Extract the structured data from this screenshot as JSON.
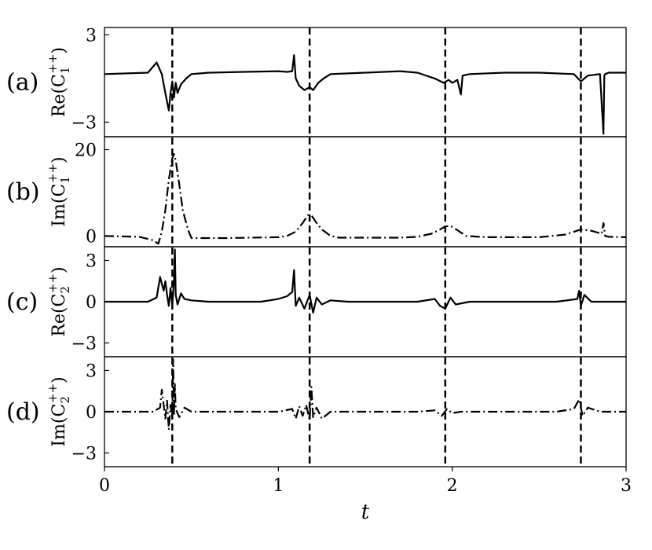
{
  "chart_data": {
    "type": "line",
    "xlabel": "t",
    "xlim": [
      0,
      3
    ],
    "xticks": [
      "0",
      "1",
      "2",
      "3"
    ],
    "vlines": [
      0.39,
      1.18,
      1.96,
      2.74
    ],
    "panels": [
      {
        "letter": "(a)",
        "ylabel_main": "Re(C",
        "ylabel_sub": "1",
        "ylabel_sup": "++",
        "ylabel_close": ")",
        "ylim": [
          -4,
          3.5
        ],
        "yticks": [
          {
            "value": 3,
            "label": "3"
          },
          {
            "value": -3,
            "label": "−3"
          }
        ],
        "linestyle": "solid",
        "x": [
          0,
          0.25,
          0.3,
          0.33,
          0.35,
          0.37,
          0.38,
          0.39,
          0.4,
          0.41,
          0.42,
          0.44,
          0.47,
          0.5,
          0.6,
          0.8,
          1.0,
          1.05,
          1.08,
          1.09,
          1.1,
          1.12,
          1.15,
          1.18,
          1.2,
          1.23,
          1.26,
          1.3,
          1.5,
          1.7,
          1.8,
          1.9,
          1.95,
          1.98,
          2.0,
          2.03,
          2.05,
          2.06,
          2.1,
          2.3,
          2.5,
          2.7,
          2.74,
          2.78,
          2.85,
          2.87,
          2.875,
          2.88,
          2.9,
          3.0
        ],
        "y": [
          0.3,
          0.4,
          1.1,
          0.3,
          -1.0,
          -2.2,
          -1.0,
          -0.2,
          -1.3,
          -0.3,
          -1.0,
          -0.4,
          0.0,
          0.3,
          0.4,
          0.45,
          0.5,
          0.45,
          0.5,
          1.6,
          0.0,
          -0.5,
          -0.8,
          -0.6,
          -0.8,
          -0.3,
          0.0,
          0.3,
          0.4,
          0.5,
          0.4,
          0.0,
          -0.3,
          -0.1,
          -0.3,
          -0.1,
          -1.1,
          0.2,
          0.3,
          0.4,
          0.4,
          0.3,
          -0.2,
          0.2,
          0.3,
          -3.8,
          0.2,
          0.3,
          0.4,
          0.4
        ]
      },
      {
        "letter": "(b)",
        "ylabel_main": "Im(C",
        "ylabel_sub": "1",
        "ylabel_sup": "++",
        "ylabel_close": ")",
        "ylim": [
          -2.5,
          23
        ],
        "yticks": [
          {
            "value": 20,
            "label": "20"
          },
          {
            "value": 0,
            "label": "0"
          }
        ],
        "linestyle": "dashdot",
        "x": [
          0,
          0.2,
          0.28,
          0.31,
          0.33,
          0.35,
          0.37,
          0.39,
          0.4,
          0.41,
          0.43,
          0.45,
          0.48,
          0.5,
          0.7,
          1.0,
          1.05,
          1.1,
          1.14,
          1.17,
          1.19,
          1.22,
          1.25,
          1.3,
          1.35,
          1.5,
          1.7,
          1.8,
          1.88,
          1.93,
          1.96,
          1.99,
          2.02,
          2.05,
          2.08,
          2.2,
          2.5,
          2.65,
          2.74,
          2.8,
          2.86,
          2.87,
          2.88,
          2.9,
          3.0
        ],
        "y": [
          0,
          -0.2,
          -1.0,
          -1.8,
          1.0,
          6.0,
          13.0,
          18.0,
          19.0,
          17.5,
          12.0,
          6.0,
          1.5,
          -0.5,
          -0.5,
          -0.3,
          0.0,
          1.0,
          3.0,
          4.8,
          4.8,
          3.0,
          1.5,
          0.0,
          -0.4,
          -0.4,
          -0.4,
          -0.2,
          0.5,
          1.5,
          2.2,
          2.3,
          1.6,
          0.8,
          0.0,
          -0.3,
          -0.3,
          0.3,
          1.5,
          1.2,
          0.5,
          3.0,
          0.0,
          -0.2,
          -0.3
        ]
      },
      {
        "letter": "(c)",
        "ylabel_main": "Re(C",
        "ylabel_sub": "2",
        "ylabel_sup": "++",
        "ylabel_close": ")",
        "ylim": [
          -4,
          4
        ],
        "yticks": [
          {
            "value": 3,
            "label": "3"
          },
          {
            "value": 0,
            "label": "0"
          },
          {
            "value": -3,
            "label": "−3"
          }
        ],
        "linestyle": "solid",
        "x": [
          0,
          0.25,
          0.3,
          0.32,
          0.34,
          0.35,
          0.36,
          0.37,
          0.38,
          0.39,
          0.4,
          0.405,
          0.41,
          0.42,
          0.44,
          0.46,
          0.5,
          0.6,
          0.9,
          1.0,
          1.05,
          1.08,
          1.09,
          1.1,
          1.12,
          1.15,
          1.18,
          1.2,
          1.22,
          1.25,
          1.3,
          1.4,
          1.8,
          1.9,
          1.93,
          1.96,
          1.99,
          2.02,
          2.1,
          2.6,
          2.72,
          2.73,
          2.74,
          2.76,
          2.8,
          2.9,
          3.0
        ],
        "y": [
          0,
          0.0,
          0.3,
          1.8,
          0.8,
          1.5,
          0.5,
          -0.3,
          1.0,
          -0.3,
          1.5,
          3.8,
          0.5,
          -0.2,
          0.6,
          0.2,
          0.1,
          0.0,
          0.0,
          0.2,
          0.4,
          0.7,
          2.3,
          -0.3,
          0.3,
          -0.5,
          0.5,
          -0.8,
          0.3,
          -0.2,
          0.1,
          0.0,
          0.0,
          0.2,
          -0.3,
          -0.5,
          0.3,
          -0.2,
          0.0,
          0.0,
          0.2,
          0.8,
          -0.3,
          0.5,
          0.0,
          0.0,
          0.0
        ]
      },
      {
        "letter": "(d)",
        "ylabel_main": "Im(C",
        "ylabel_sub": "2",
        "ylabel_sup": "++",
        "ylabel_close": ")",
        "ylim": [
          -4,
          4
        ],
        "yticks": [
          {
            "value": 3,
            "label": "3"
          },
          {
            "value": 0,
            "label": "0"
          },
          {
            "value": -3,
            "label": "−3"
          }
        ],
        "linestyle": "dashdot",
        "x": [
          0,
          0.28,
          0.32,
          0.33,
          0.35,
          0.36,
          0.37,
          0.38,
          0.39,
          0.395,
          0.4,
          0.405,
          0.41,
          0.43,
          0.46,
          0.5,
          0.6,
          1.0,
          1.08,
          1.1,
          1.12,
          1.14,
          1.16,
          1.18,
          1.19,
          1.2,
          1.22,
          1.25,
          1.3,
          1.8,
          1.9,
          1.94,
          1.97,
          2.0,
          2.05,
          2.6,
          2.7,
          2.73,
          2.75,
          2.78,
          2.85,
          3.0
        ],
        "y": [
          0,
          0.0,
          0.3,
          1.6,
          -0.5,
          0.8,
          -1.3,
          0.5,
          -0.5,
          3.8,
          -0.3,
          2.0,
          0.2,
          -0.4,
          0.3,
          0.0,
          0.0,
          0.0,
          0.2,
          -0.5,
          0.4,
          -0.3,
          0.5,
          -0.6,
          1.8,
          -0.4,
          0.3,
          -0.5,
          0.0,
          0.0,
          0.1,
          -0.3,
          0.2,
          -0.1,
          0.0,
          0.0,
          0.2,
          0.9,
          -0.3,
          0.3,
          0.0,
          0.0
        ]
      }
    ]
  }
}
